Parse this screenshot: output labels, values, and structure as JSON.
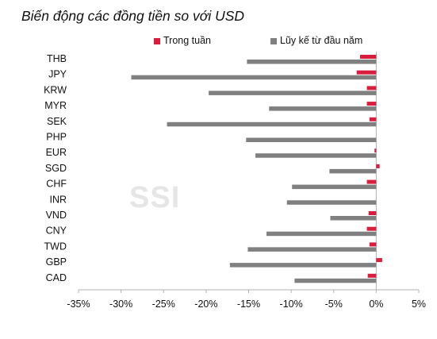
{
  "title": "Biến động các đồng tiền so với USD",
  "watermark": "SSI",
  "colors": {
    "weekly": "#d81e3c",
    "ytd": "#808080"
  },
  "chart_data": {
    "type": "bar",
    "orientation": "horizontal",
    "categories": [
      "THB",
      "JPY",
      "KRW",
      "MYR",
      "SEK",
      "PHP",
      "EUR",
      "SGD",
      "CHF",
      "INR",
      "VND",
      "CNY",
      "TWD",
      "GBP",
      "CAD"
    ],
    "series": [
      {
        "name": "Trong tuần",
        "values": [
          -1.9,
          -2.3,
          -1.1,
          -1.1,
          -0.8,
          0.0,
          -0.2,
          0.4,
          -1.1,
          0.0,
          -0.9,
          -1.1,
          -0.8,
          0.7,
          -1.0
        ]
      },
      {
        "name": "Lũy kế từ đầu năm",
        "values": [
          -15.2,
          -28.8,
          -19.7,
          -12.6,
          -24.6,
          -15.3,
          -14.2,
          -5.5,
          -9.9,
          -10.5,
          -5.4,
          -12.9,
          -15.1,
          -17.2,
          -9.6
        ]
      }
    ],
    "xlim": [
      -35,
      5
    ],
    "xticks": [
      -35,
      -30,
      -25,
      -20,
      -15,
      -10,
      -5,
      0,
      5
    ],
    "xtick_labels": [
      "-35%",
      "-30%",
      "-25%",
      "-20%",
      "-15%",
      "-10%",
      "-5%",
      "0%",
      "5%"
    ],
    "legend_position": "top"
  }
}
